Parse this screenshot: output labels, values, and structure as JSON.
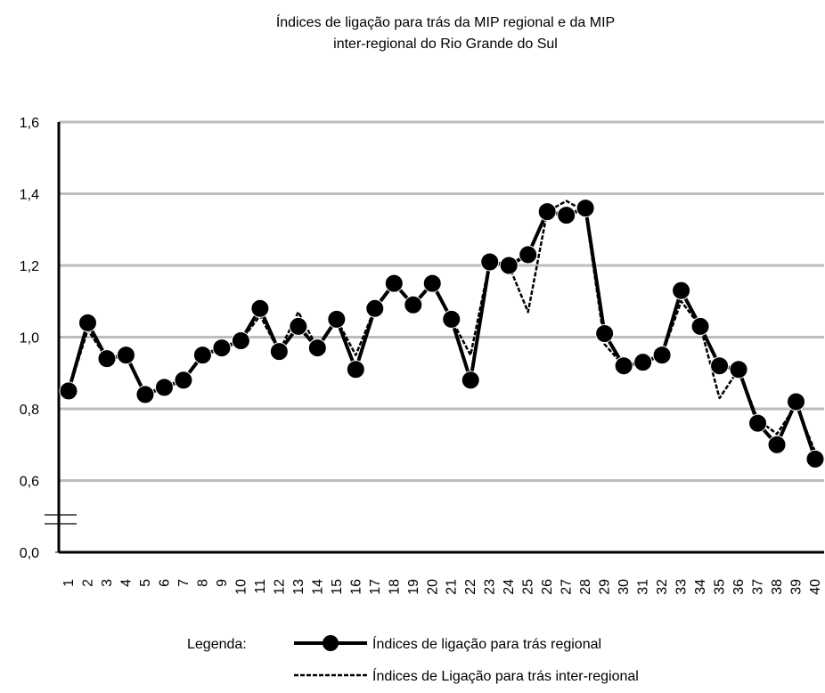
{
  "chart_data": {
    "type": "line",
    "title": [
      "Índices de ligação para trás da MIP regional e da MIP",
      "inter-regional do Rio Grande do Sul"
    ],
    "categories": [
      "1",
      "2",
      "3",
      "4",
      "5",
      "6",
      "7",
      "8",
      "9",
      "10",
      "11",
      "12",
      "13",
      "14",
      "15",
      "16",
      "17",
      "18",
      "19",
      "20",
      "21",
      "22",
      "23",
      "24",
      "25",
      "26",
      "27",
      "28",
      "29",
      "30",
      "31",
      "32",
      "33",
      "34",
      "35",
      "36",
      "37",
      "38",
      "39",
      "40"
    ],
    "series": [
      {
        "name": "Índices de ligação para trás regional",
        "color": "#000000",
        "line_style": "solid",
        "marker": "circle",
        "values": [
          0.85,
          1.04,
          0.94,
          0.95,
          0.84,
          0.86,
          0.88,
          0.95,
          0.97,
          0.99,
          1.08,
          0.96,
          1.03,
          0.97,
          1.05,
          0.91,
          1.08,
          1.15,
          1.09,
          1.15,
          1.05,
          0.88,
          1.21,
          1.2,
          1.23,
          1.35,
          1.34,
          1.36,
          1.01,
          0.92,
          0.93,
          0.95,
          1.13,
          1.03,
          0.92,
          0.91,
          0.76,
          0.7,
          0.82,
          0.66
        ]
      },
      {
        "name": "Índices de Ligação para trás  inter-regional",
        "color": "#000000",
        "line_style": "dashed",
        "marker": "none",
        "values": [
          0.85,
          1.02,
          0.94,
          0.95,
          0.84,
          0.86,
          0.88,
          0.95,
          0.97,
          0.99,
          1.06,
          0.96,
          1.07,
          0.97,
          1.05,
          0.95,
          1.08,
          1.15,
          1.09,
          1.15,
          1.05,
          0.95,
          1.21,
          1.2,
          1.07,
          1.35,
          1.38,
          1.35,
          0.98,
          0.92,
          0.93,
          0.95,
          1.1,
          1.03,
          0.83,
          0.91,
          0.77,
          0.73,
          0.81,
          0.68
        ]
      }
    ],
    "ylim": [
      0,
      1.6
    ],
    "y_axis_break": [
      0,
      0.6
    ],
    "yticks": [
      {
        "value": 0,
        "label": "0,0"
      },
      {
        "value": 0.6,
        "label": "0,6"
      },
      {
        "value": 0.8,
        "label": "0,8"
      },
      {
        "value": 1.0,
        "label": "1,0"
      },
      {
        "value": 1.2,
        "label": "1,2"
      },
      {
        "value": 1.4,
        "label": "1,4"
      },
      {
        "value": 1.6,
        "label": "1,6"
      }
    ],
    "grid": true,
    "legend_title": "Legenda:",
    "legend_position": "bottom"
  }
}
